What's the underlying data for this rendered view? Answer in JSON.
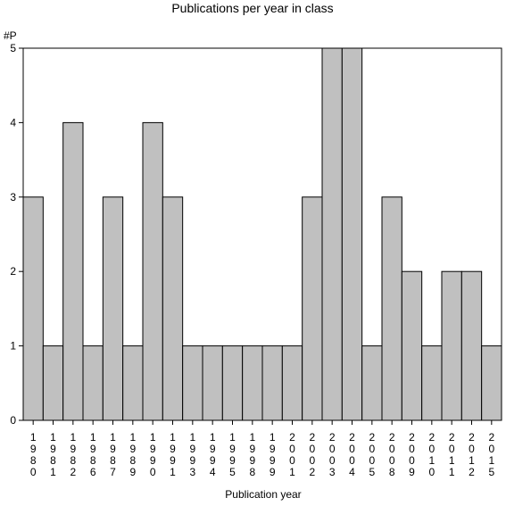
{
  "chart_data": {
    "type": "bar",
    "title": "Publications per year in class",
    "ylabel": "#P",
    "xlabel": "Publication year",
    "ylim": [
      0,
      5
    ],
    "yticks": [
      0,
      1,
      2,
      3,
      4,
      5
    ],
    "grid": false,
    "categories": [
      "1980",
      "1981",
      "1982",
      "1986",
      "1987",
      "1989",
      "1990",
      "1991",
      "1993",
      "1994",
      "1995",
      "1998",
      "1999",
      "2001",
      "2002",
      "2003",
      "2004",
      "2005",
      "2008",
      "2009",
      "2010",
      "2011",
      "2012",
      "2015"
    ],
    "values": [
      3,
      1,
      4,
      1,
      3,
      1,
      4,
      3,
      1,
      1,
      1,
      1,
      1,
      1,
      3,
      5,
      5,
      1,
      3,
      2,
      1,
      2,
      2,
      1
    ],
    "colors": {
      "bar_fill": "#c0c0c0",
      "bar_stroke": "#000000",
      "axis": "#000000"
    }
  }
}
